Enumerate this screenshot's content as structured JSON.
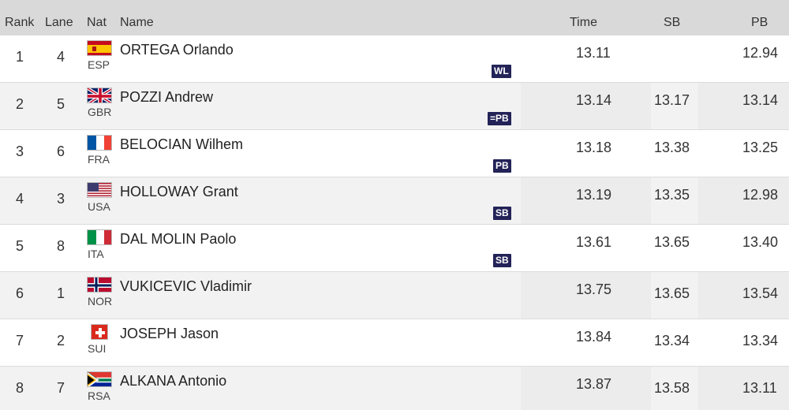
{
  "headers": {
    "rank": "Rank",
    "lane": "Lane",
    "nat": "Nat",
    "name": "Name",
    "time": "Time",
    "sb": "SB",
    "pb": "PB"
  },
  "rows": [
    {
      "rank": "1",
      "lane": "4",
      "code": "ESP",
      "flag": "spain-flag-icon",
      "name": "ORTEGA Orlando",
      "time": "13.11",
      "sb": "",
      "pb": "12.94",
      "note": "WL"
    },
    {
      "rank": "2",
      "lane": "5",
      "code": "GBR",
      "flag": "uk-flag-icon",
      "name": "POZZI Andrew",
      "time": "13.14",
      "sb": "13.17",
      "pb": "13.14",
      "note": "=PB"
    },
    {
      "rank": "3",
      "lane": "6",
      "code": "FRA",
      "flag": "france-flag-icon",
      "name": "BELOCIAN Wilhem",
      "time": "13.18",
      "sb": "13.38",
      "pb": "13.25",
      "note": "PB"
    },
    {
      "rank": "4",
      "lane": "3",
      "code": "USA",
      "flag": "usa-flag-icon",
      "name": "HOLLOWAY Grant",
      "time": "13.19",
      "sb": "13.35",
      "pb": "12.98",
      "note": "SB"
    },
    {
      "rank": "5",
      "lane": "8",
      "code": "ITA",
      "flag": "italy-flag-icon",
      "name": "DAL MOLIN Paolo",
      "time": "13.61",
      "sb": "13.65",
      "pb": "13.40",
      "note": "SB"
    },
    {
      "rank": "6",
      "lane": "1",
      "code": "NOR",
      "flag": "norway-flag-icon",
      "name": "VUKICEVIC Vladimir",
      "time": "13.75",
      "sb": "13.65",
      "pb": "13.54",
      "note": ""
    },
    {
      "rank": "7",
      "lane": "2",
      "code": "SUI",
      "flag": "switzerland-flag-icon",
      "name": "JOSEPH Jason",
      "time": "13.84",
      "sb": "13.34",
      "pb": "13.34",
      "note": ""
    },
    {
      "rank": "8",
      "lane": "7",
      "code": "RSA",
      "flag": "south-africa-flag-icon",
      "name": "ALKANA Antonio",
      "time": "13.87",
      "sb": "13.58",
      "pb": "13.11",
      "note": ""
    }
  ],
  "colors": {
    "header_bg": "#d9d9d9",
    "badge_bg": "#232358",
    "row_alt_bg": "#f2f2f2"
  }
}
